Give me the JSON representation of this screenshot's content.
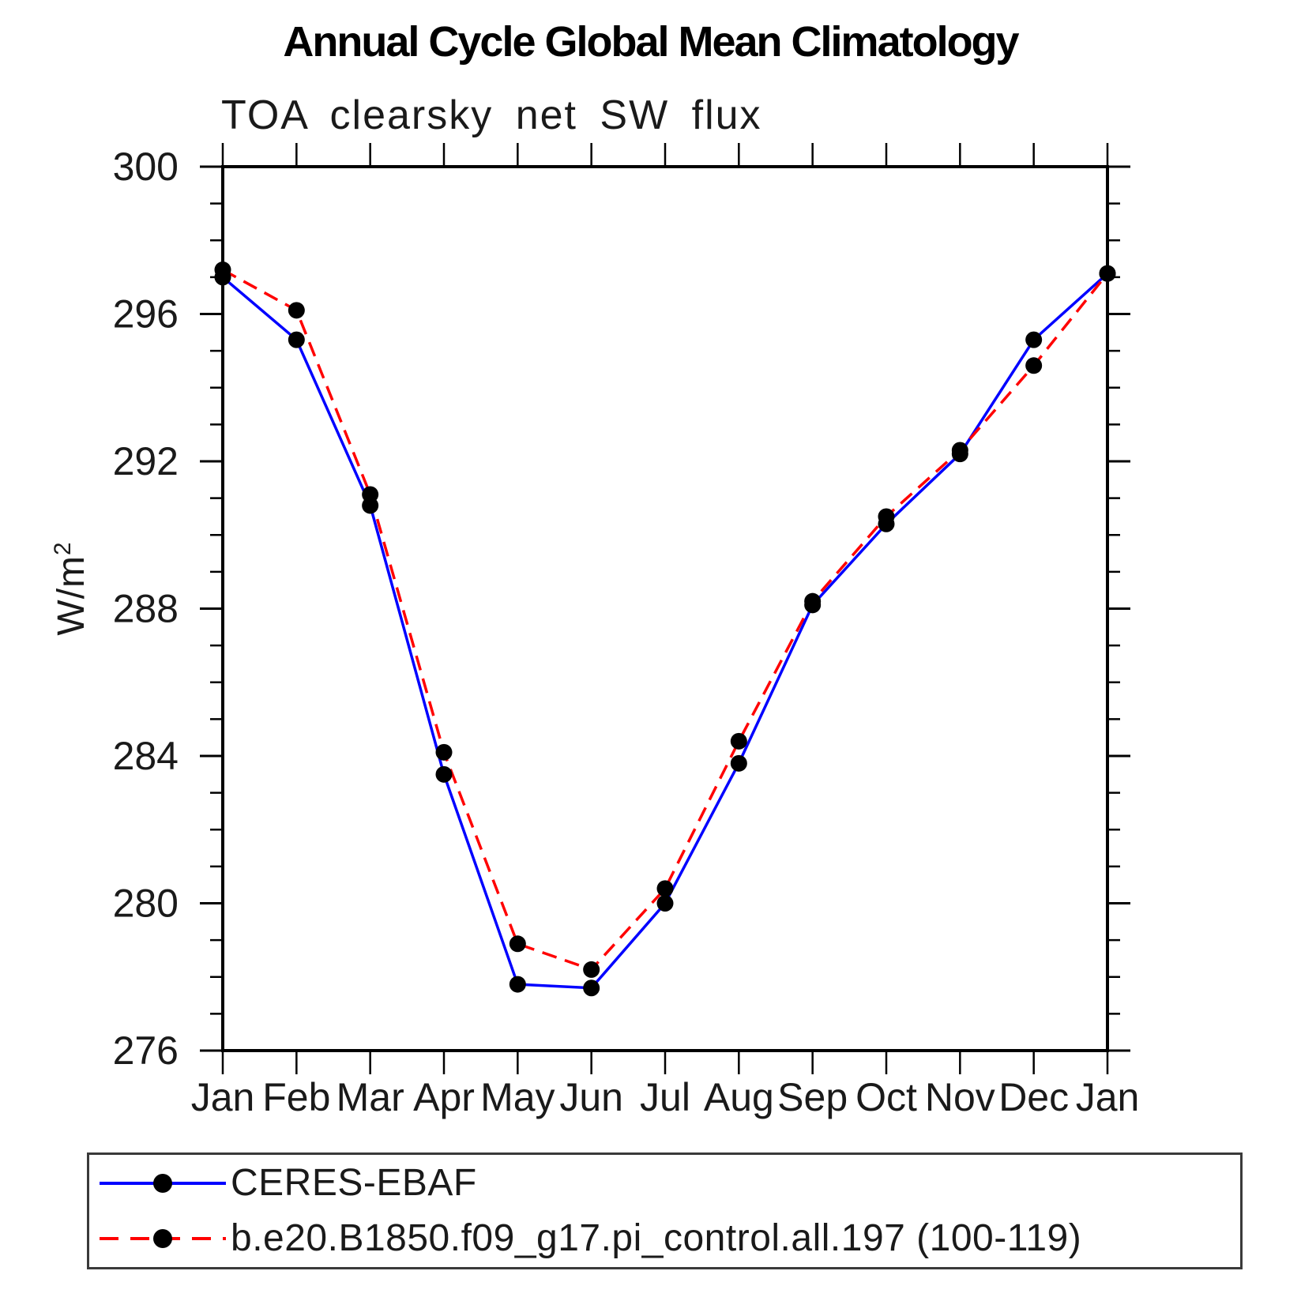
{
  "chart": {
    "title": "Annual Cycle Global Mean Climatology",
    "subtitle": "TOA clearsky net SW flux",
    "ylabel_base": "W/m",
    "ylabel_exponent": "2"
  },
  "chart_data": {
    "type": "line",
    "title": "Annual Cycle Global Mean Climatology",
    "subtitle": "TOA clearsky net SW flux",
    "xlabel": "",
    "ylabel": "W/m^2",
    "categories": [
      "Jan",
      "Feb",
      "Mar",
      "Apr",
      "May",
      "Jun",
      "Jul",
      "Aug",
      "Sep",
      "Oct",
      "Nov",
      "Dec",
      "Jan"
    ],
    "ylim": [
      276,
      300
    ],
    "yticks_major": [
      276,
      280,
      284,
      288,
      292,
      296,
      300
    ],
    "ytick_minor_step": 1,
    "grid": false,
    "legend_position": "bottom",
    "marker": "filled-circle",
    "marker_color": "#000000",
    "axis_color": "#000000",
    "series": [
      {
        "name": "CERES-EBAF",
        "color": "#0000ff",
        "line_style": "solid",
        "values": [
          297.0,
          295.3,
          290.8,
          283.5,
          277.8,
          277.7,
          280.0,
          283.8,
          288.1,
          290.3,
          292.2,
          295.3,
          297.1
        ]
      },
      {
        "name": "b.e20.B1850.f09_g17.pi_control.all.197 (100-119)",
        "color": "#ff0000",
        "line_style": "dashed",
        "values": [
          297.2,
          296.1,
          291.1,
          284.1,
          278.9,
          278.2,
          280.4,
          284.4,
          288.2,
          290.5,
          292.3,
          294.6,
          297.1
        ]
      }
    ]
  }
}
